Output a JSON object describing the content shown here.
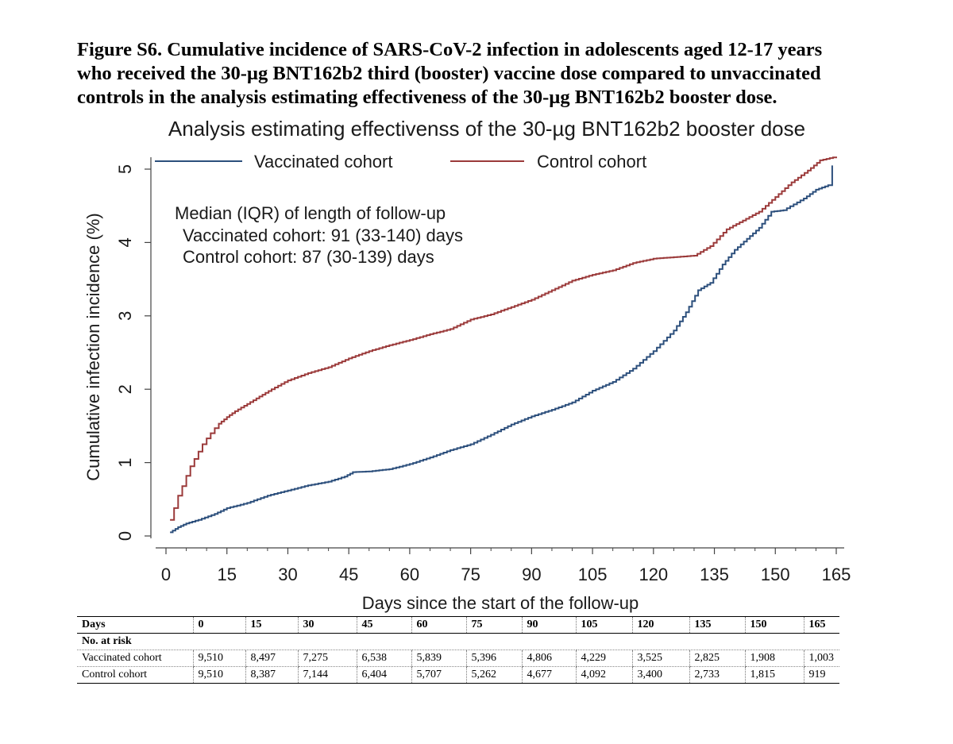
{
  "figure": {
    "caption_lines": [
      "Figure S6. Cumulative incidence of SARS-CoV-2 infection in adolescents aged 12-17 years",
      "who received the 30-µg BNT162b2 third (booster) vaccine dose compared to unvaccinated",
      "controls in the analysis estimating effectiveness of the 30-µg BNT162b2 booster dose."
    ]
  },
  "chart_data": {
    "type": "line",
    "title": "Analysis estimating effectivenss of the 30-µg BNT162b2 booster dose",
    "xlabel": "Days since the start of the follow-up",
    "ylabel": "Cumulative infection incidence (%)",
    "xlim": [
      0,
      165
    ],
    "ylim": [
      0,
      5
    ],
    "xticks": [
      0,
      15,
      30,
      45,
      60,
      75,
      90,
      105,
      120,
      135,
      150,
      165
    ],
    "yticks": [
      0,
      1,
      2,
      3,
      4,
      5
    ],
    "legend_position": "top",
    "annotation_lines": [
      "Median (IQR) of length of follow-up",
      "Vaccinated cohort: 91 (33-140) days",
      "Control cohort: 87 (30-139) days"
    ],
    "series": [
      {
        "name": "Vaccinated cohort",
        "color": "#2c4f7c",
        "x": [
          1,
          3,
          5,
          8,
          12,
          15,
          20,
          25,
          30,
          35,
          40,
          44,
          46,
          50,
          55,
          60,
          65,
          70,
          75,
          80,
          85,
          90,
          95,
          100,
          105,
          110,
          115,
          120,
          125,
          128,
          131,
          134,
          137,
          140,
          143,
          146,
          149,
          152,
          157,
          160,
          163,
          164
        ],
        "y": [
          0.05,
          0.12,
          0.17,
          0.22,
          0.3,
          0.38,
          0.45,
          0.55,
          0.62,
          0.69,
          0.74,
          0.81,
          0.87,
          0.88,
          0.91,
          0.98,
          1.07,
          1.17,
          1.25,
          1.38,
          1.52,
          1.63,
          1.72,
          1.82,
          1.98,
          2.1,
          2.28,
          2.52,
          2.8,
          3.05,
          3.35,
          3.45,
          3.7,
          3.9,
          4.05,
          4.2,
          4.42,
          4.44,
          4.6,
          4.72,
          4.78,
          5.05
        ]
      },
      {
        "name": "Control cohort",
        "color": "#9b3a3a",
        "x": [
          1,
          2,
          3,
          4,
          5,
          6,
          7,
          8,
          9,
          10,
          11,
          12,
          13,
          15,
          17,
          20,
          23,
          26,
          30,
          35,
          40,
          45,
          50,
          55,
          60,
          65,
          70,
          75,
          80,
          85,
          90,
          95,
          100,
          105,
          110,
          115,
          120,
          125,
          130,
          134,
          138,
          142,
          146,
          150,
          154,
          158,
          161,
          165
        ],
        "y": [
          0.22,
          0.38,
          0.55,
          0.68,
          0.82,
          0.95,
          1.05,
          1.15,
          1.25,
          1.33,
          1.4,
          1.47,
          1.53,
          1.62,
          1.7,
          1.8,
          1.9,
          2.0,
          2.12,
          2.22,
          2.3,
          2.42,
          2.52,
          2.6,
          2.67,
          2.75,
          2.82,
          2.95,
          3.02,
          3.12,
          3.22,
          3.35,
          3.48,
          3.56,
          3.62,
          3.72,
          3.78,
          3.8,
          3.82,
          3.95,
          4.18,
          4.3,
          4.42,
          4.62,
          4.82,
          4.98,
          5.12,
          5.17
        ]
      }
    ]
  },
  "risk_table": {
    "days_label": "Days",
    "days": [
      "0",
      "15",
      "30",
      "45",
      "60",
      "75",
      "90",
      "105",
      "120",
      "135",
      "150",
      "165"
    ],
    "subheading": "No. at risk",
    "rows": [
      {
        "label": "Vaccinated cohort",
        "values": [
          "9,510",
          "8,497",
          "7,275",
          "6,538",
          "5,839",
          "5,396",
          "4,806",
          "4,229",
          "3,525",
          "2,825",
          "1,908",
          "1,003"
        ]
      },
      {
        "label": "Control cohort",
        "values": [
          "9,510",
          "8,387",
          "7,144",
          "6,404",
          "5,707",
          "5,262",
          "4,677",
          "4,092",
          "3,400",
          "2,733",
          "1,815",
          "919"
        ]
      }
    ]
  }
}
